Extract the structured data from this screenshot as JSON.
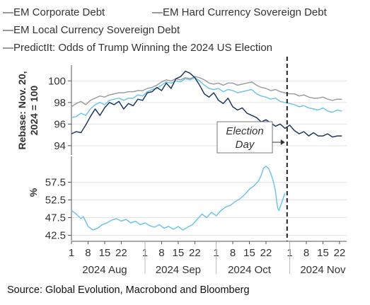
{
  "chart_data": {
    "type": "line",
    "legend": {
      "placement": "top",
      "entries": [
        {
          "label": "—EM Corporate Debt",
          "color": "#9e9e9e"
        },
        {
          "label": "—EM Hard Currency Sovereign Debt",
          "color": "#6ec6ea"
        },
        {
          "label": "—EM Local Currency Sovereign Debt",
          "color": "#1f3a5f"
        },
        {
          "label": "—PredictIt: Odds of Trump Winning the 2024 US Election",
          "color": "#6ec6ea"
        }
      ]
    },
    "x_axis": {
      "tick_labels": [
        "1",
        "8",
        "15",
        "22",
        "1",
        "8",
        "15",
        "22",
        "1",
        "8",
        "15",
        "22",
        "1",
        "8",
        "15",
        "22"
      ],
      "tick_days": [
        0,
        7,
        14,
        21,
        31,
        38,
        45,
        52,
        61,
        68,
        75,
        82,
        92,
        99,
        106,
        113
      ],
      "month_labels": [
        "2024 Aug",
        "2024 Sep",
        "2024 Oct",
        "2024 Nov"
      ],
      "month_centers": [
        14,
        45,
        75,
        106
      ],
      "range": [
        0,
        116
      ]
    },
    "top_panel": {
      "ylabel": "Rebase: Nov. 20, 2024 = 100",
      "ylabel_lines": [
        "Rebase: Nov. 20,",
        "2024 = 100"
      ],
      "yticks": [
        94,
        96,
        98,
        100
      ],
      "ylim": [
        93.4,
        101.2
      ],
      "series": [
        {
          "name": "EM Corporate Debt",
          "color": "#9e9e9e",
          "points": [
            [
              0,
              97.6
            ],
            [
              2,
              97.9
            ],
            [
              4,
              98.1
            ],
            [
              6,
              97.8
            ],
            [
              8,
              98.2
            ],
            [
              10,
              98.4
            ],
            [
              12,
              98.6
            ],
            [
              14,
              98.5
            ],
            [
              16,
              98.7
            ],
            [
              18,
              98.8
            ],
            [
              20,
              98.9
            ],
            [
              22,
              98.9
            ],
            [
              24,
              99.0
            ],
            [
              26,
              99.0
            ],
            [
              28,
              99.1
            ],
            [
              30,
              99.1
            ],
            [
              32,
              99.3
            ],
            [
              34,
              99.4
            ],
            [
              36,
              99.6
            ],
            [
              38,
              99.9
            ],
            [
              40,
              100.1
            ],
            [
              42,
              100.0
            ],
            [
              44,
              100.2
            ],
            [
              46,
              100.1
            ],
            [
              48,
              100.3
            ],
            [
              50,
              100.2
            ],
            [
              52,
              100.4
            ],
            [
              54,
              100.3
            ],
            [
              56,
              100.1
            ],
            [
              58,
              99.8
            ],
            [
              60,
              99.7
            ],
            [
              62,
              99.8
            ],
            [
              64,
              99.6
            ],
            [
              66,
              99.8
            ],
            [
              68,
              99.8
            ],
            [
              70,
              99.6
            ],
            [
              72,
              99.7
            ],
            [
              74,
              99.8
            ],
            [
              76,
              99.9
            ],
            [
              78,
              99.6
            ],
            [
              80,
              99.4
            ],
            [
              82,
              99.3
            ],
            [
              84,
              99.1
            ],
            [
              86,
              99.2
            ],
            [
              88,
              99.0
            ],
            [
              90,
              98.9
            ],
            [
              92,
              98.8
            ],
            [
              94,
              98.8
            ],
            [
              96,
              98.6
            ],
            [
              98,
              98.7
            ],
            [
              100,
              98.5
            ],
            [
              102,
              98.4
            ],
            [
              104,
              98.4
            ],
            [
              106,
              98.5
            ],
            [
              108,
              98.3
            ],
            [
              110,
              98.2
            ],
            [
              112,
              98.3
            ],
            [
              114,
              98.3
            ]
          ]
        },
        {
          "name": "EM Hard Currency Sovereign Debt",
          "color": "#6ec6ea",
          "points": [
            [
              0,
              96.6
            ],
            [
              2,
              96.7
            ],
            [
              4,
              97.0
            ],
            [
              6,
              96.8
            ],
            [
              8,
              97.4
            ],
            [
              10,
              97.8
            ],
            [
              12,
              98.0
            ],
            [
              14,
              97.8
            ],
            [
              16,
              98.2
            ],
            [
              18,
              98.3
            ],
            [
              20,
              98.4
            ],
            [
              22,
              98.2
            ],
            [
              24,
              98.4
            ],
            [
              26,
              98.4
            ],
            [
              28,
              98.7
            ],
            [
              30,
              98.6
            ],
            [
              32,
              99.0
            ],
            [
              34,
              99.2
            ],
            [
              36,
              99.3
            ],
            [
              38,
              99.6
            ],
            [
              40,
              99.9
            ],
            [
              42,
              99.8
            ],
            [
              44,
              100.0
            ],
            [
              46,
              99.9
            ],
            [
              48,
              100.2
            ],
            [
              50,
              100.1
            ],
            [
              52,
              100.3
            ],
            [
              54,
              100.0
            ],
            [
              56,
              99.6
            ],
            [
              58,
              99.3
            ],
            [
              60,
              99.2
            ],
            [
              62,
              99.3
            ],
            [
              64,
              99.0
            ],
            [
              66,
              99.2
            ],
            [
              68,
              99.1
            ],
            [
              70,
              98.9
            ],
            [
              72,
              99.0
            ],
            [
              74,
              99.1
            ],
            [
              76,
              99.2
            ],
            [
              78,
              98.8
            ],
            [
              80,
              98.6
            ],
            [
              82,
              98.5
            ],
            [
              84,
              98.3
            ],
            [
              86,
              98.4
            ],
            [
              88,
              98.1
            ],
            [
              90,
              98.0
            ],
            [
              92,
              97.9
            ],
            [
              94,
              97.8
            ],
            [
              96,
              97.6
            ],
            [
              98,
              97.7
            ],
            [
              100,
              97.5
            ],
            [
              102,
              97.4
            ],
            [
              104,
              97.3
            ],
            [
              106,
              97.5
            ],
            [
              108,
              97.2
            ],
            [
              110,
              97.1
            ],
            [
              112,
              97.3
            ],
            [
              114,
              97.2
            ]
          ]
        },
        {
          "name": "EM Local Currency Sovereign Debt",
          "color": "#1f3a5f",
          "points": [
            [
              0,
              95.1
            ],
            [
              2,
              95.3
            ],
            [
              4,
              95.2
            ],
            [
              6,
              95.9
            ],
            [
              8,
              96.7
            ],
            [
              10,
              97.4
            ],
            [
              12,
              96.8
            ],
            [
              14,
              97.5
            ],
            [
              16,
              98.0
            ],
            [
              18,
              97.8
            ],
            [
              20,
              98.1
            ],
            [
              22,
              97.4
            ],
            [
              24,
              97.9
            ],
            [
              26,
              97.7
            ],
            [
              28,
              98.3
            ],
            [
              30,
              98.2
            ],
            [
              32,
              98.9
            ],
            [
              34,
              99.0
            ],
            [
              36,
              99.4
            ],
            [
              38,
              99.1
            ],
            [
              40,
              99.8
            ],
            [
              42,
              99.3
            ],
            [
              44,
              100.2
            ],
            [
              46,
              100.4
            ],
            [
              48,
              100.9
            ],
            [
              50,
              100.7
            ],
            [
              52,
              100.3
            ],
            [
              54,
              99.6
            ],
            [
              56,
              98.8
            ],
            [
              58,
              98.5
            ],
            [
              60,
              98.9
            ],
            [
              62,
              98.2
            ],
            [
              64,
              97.9
            ],
            [
              66,
              98.4
            ],
            [
              68,
              97.6
            ],
            [
              70,
              97.3
            ],
            [
              72,
              97.5
            ],
            [
              74,
              97.0
            ],
            [
              76,
              96.8
            ],
            [
              78,
              96.6
            ],
            [
              80,
              96.2
            ],
            [
              82,
              96.4
            ],
            [
              84,
              96.1
            ],
            [
              86,
              95.8
            ],
            [
              88,
              96.0
            ],
            [
              90,
              95.6
            ],
            [
              92,
              95.9
            ],
            [
              94,
              95.4
            ],
            [
              96,
              95.1
            ],
            [
              98,
              95.3
            ],
            [
              100,
              94.9
            ],
            [
              102,
              95.2
            ],
            [
              104,
              94.9
            ],
            [
              106,
              94.9
            ],
            [
              108,
              95.1
            ],
            [
              110,
              94.8
            ],
            [
              112,
              94.9
            ],
            [
              114,
              94.9
            ]
          ]
        }
      ]
    },
    "bottom_panel": {
      "ylabel": "%",
      "yticks": [
        42.5,
        47.5,
        52.5,
        57.5
      ],
      "ylim": [
        41,
        64
      ],
      "series": [
        {
          "name": "PredictIt: Odds of Trump Winning the 2024 US Election",
          "color": "#6ec6ea",
          "points": [
            [
              0,
              49.5
            ],
            [
              2,
              48.5
            ],
            [
              4,
              47.2
            ],
            [
              5,
              47.8
            ],
            [
              7,
              45.0
            ],
            [
              9,
              44.0
            ],
            [
              11,
              44.5
            ],
            [
              13,
              45.5
            ],
            [
              15,
              46.0
            ],
            [
              17,
              46.8
            ],
            [
              19,
              47.2
            ],
            [
              21,
              46.5
            ],
            [
              23,
              47.0
            ],
            [
              25,
              46.0
            ],
            [
              27,
              46.5
            ],
            [
              29,
              45.5
            ],
            [
              31,
              46.0
            ],
            [
              33,
              45.2
            ],
            [
              35,
              44.8
            ],
            [
              37,
              45.5
            ],
            [
              39,
              44.5
            ],
            [
              41,
              45.0
            ],
            [
              43,
              44.2
            ],
            [
              45,
              45.0
            ],
            [
              47,
              44.0
            ],
            [
              49,
              44.8
            ],
            [
              51,
              45.5
            ],
            [
              53,
              47.0
            ],
            [
              55,
              48.5
            ],
            [
              57,
              47.5
            ],
            [
              59,
              49.0
            ],
            [
              61,
              48.0
            ],
            [
              63,
              49.5
            ],
            [
              65,
              50.5
            ],
            [
              67,
              51.0
            ],
            [
              69,
              52.0
            ],
            [
              71,
              52.8
            ],
            [
              73,
              54.0
            ],
            [
              75,
              55.5
            ],
            [
              77,
              56.5
            ],
            [
              79,
              58.0
            ],
            [
              80,
              59.5
            ],
            [
              81,
              61.5
            ],
            [
              82,
              62.0
            ],
            [
              83,
              61.5
            ],
            [
              84,
              60.0
            ],
            [
              85,
              58.0
            ],
            [
              86,
              55.0
            ],
            [
              86.5,
              52.0
            ],
            [
              87,
              50.0
            ],
            [
              87.5,
              49.5
            ],
            [
              88,
              50.5
            ],
            [
              89,
              52.5
            ],
            [
              90,
              54.5
            ]
          ]
        }
      ]
    },
    "annotation": {
      "lines": [
        "Election",
        "Day"
      ],
      "event_day": 90,
      "event_label": "Election Day"
    },
    "source": "Source: Global Evolution, Macrobond and Bloomberg"
  }
}
